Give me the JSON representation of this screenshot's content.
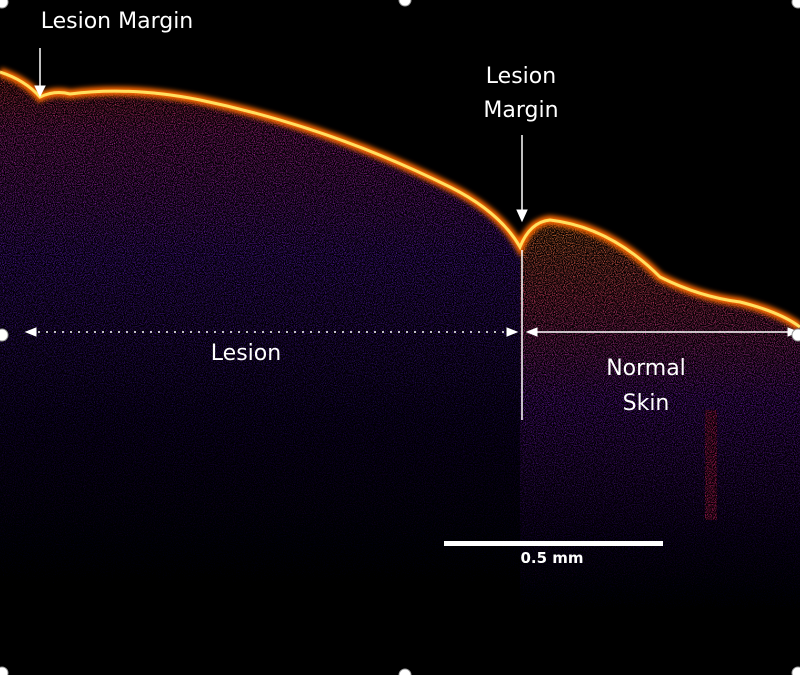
{
  "labels": {
    "left_margin": "Lesion Margin",
    "right_margin_line1": "Lesion",
    "right_margin_line2": "Margin",
    "lesion": "Lesion",
    "normal_skin_line1": "Normal",
    "normal_skin_line2": "Skin"
  },
  "scale_bar": {
    "label": "0.5 mm"
  }
}
